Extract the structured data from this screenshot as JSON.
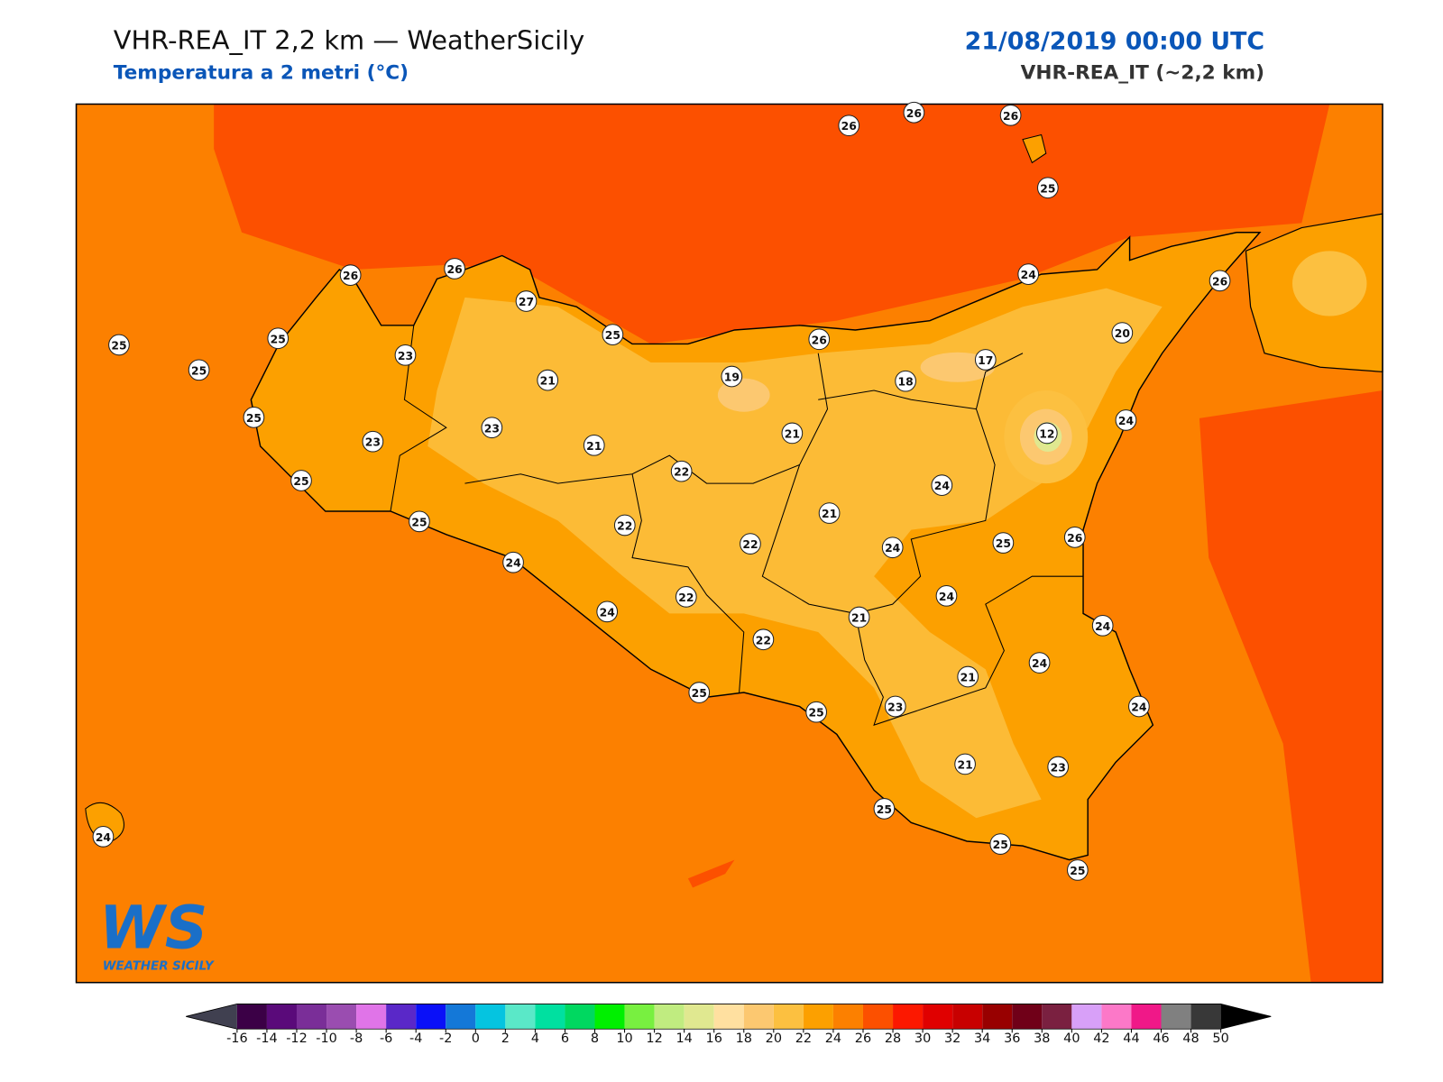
{
  "header": {
    "title": "VHR-REA_IT 2,2 km — WeatherSicily",
    "subtitle": "Temperatura a 2 metri (°C)",
    "datetime": "21/08/2019 00:00 UTC",
    "model": "VHR-REA_IT (~2,2 km)"
  },
  "logo": {
    "mark": "WS",
    "name": "WEATHER SICILY"
  },
  "stations": [
    26,
    26,
    26,
    25,
    26,
    26,
    27,
    25,
    25,
    25,
    23,
    25,
    21,
    19,
    26,
    24,
    26,
    20,
    17,
    18,
    25,
    23,
    23,
    21,
    21,
    12,
    24,
    25,
    22,
    24,
    25,
    22,
    21,
    22,
    24,
    25,
    26,
    24,
    22,
    24,
    24,
    21,
    24,
    22,
    24,
    21,
    25,
    25,
    23,
    24,
    21,
    23,
    25,
    24,
    25,
    25
  ],
  "colorbar": {
    "ticks": [
      -16,
      -14,
      -12,
      -10,
      -8,
      -6,
      -4,
      -2,
      0,
      2,
      4,
      6,
      8,
      10,
      12,
      14,
      16,
      18,
      20,
      22,
      24,
      26,
      28,
      30,
      32,
      34,
      36,
      38,
      40,
      42,
      44,
      46,
      48,
      50
    ],
    "colors": [
      "#3b0046",
      "#5a0a7a",
      "#7a2e98",
      "#9a4db0",
      "#e074e8",
      "#5a28c8",
      "#0a10f8",
      "#1478d8",
      "#05c4e0",
      "#5ae8c8",
      "#00e0a0",
      "#00d860",
      "#00f000",
      "#78f040",
      "#c0ec80",
      "#e0e890",
      "#ffe0a0",
      "#fcc870",
      "#fcc040",
      "#fca000",
      "#fc8000",
      "#fc5000",
      "#fc1800",
      "#e00000",
      "#c80000",
      "#980000",
      "#700018",
      "#7a2040",
      "#d8a0f8",
      "#fc78c8",
      "#f01888",
      "#808080",
      "#383838"
    ],
    "under_color": "#404050",
    "over_color": "#000000"
  }
}
